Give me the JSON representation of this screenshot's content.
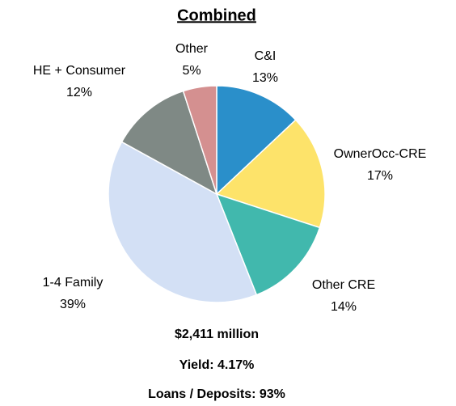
{
  "chart_data": {
    "type": "pie",
    "title": "Combined",
    "categories": [
      "C&I",
      "OwnerOcc-CRE",
      "Other CRE",
      "1-4 Family",
      "HE + Consumer",
      "Other"
    ],
    "values": [
      13,
      17,
      14,
      39,
      12,
      5
    ],
    "value_labels": [
      "13%",
      "17%",
      "14%",
      "39%",
      "12%",
      "5%"
    ],
    "colors": [
      "#2a8fca",
      "#fde36a",
      "#41b8ad",
      "#d3e0f5",
      "#7f8985",
      "#d49090"
    ],
    "notes": [
      "$2,411 million",
      "Yield: 4.17%",
      "Loans / Deposits: 93%"
    ]
  }
}
